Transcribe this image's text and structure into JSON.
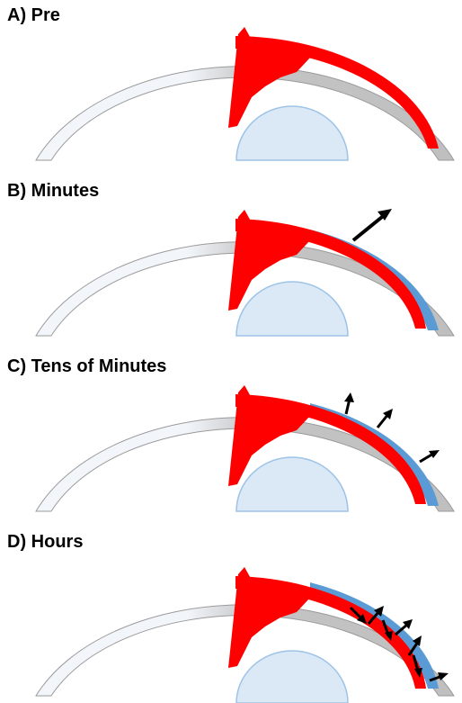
{
  "panels": [
    {
      "label": "A) Pre",
      "stage": "pre"
    },
    {
      "label": "B) Minutes",
      "stage": "minutes"
    },
    {
      "label": "C) Tens of Minutes",
      "stage": "tens"
    },
    {
      "label": "D) Hours",
      "stage": "hours"
    }
  ],
  "colors": {
    "outer_arc_grey": "#bfbfbf",
    "outer_arc_light": "#f2f6fb",
    "arc_outline": "#9a9a9a",
    "red_layer": "#ff0000",
    "blue_layer": "#5b9bd5",
    "dome_fill": "#dbe8f6",
    "dome_stroke": "#9dc3e6",
    "arrow": "#000000"
  }
}
